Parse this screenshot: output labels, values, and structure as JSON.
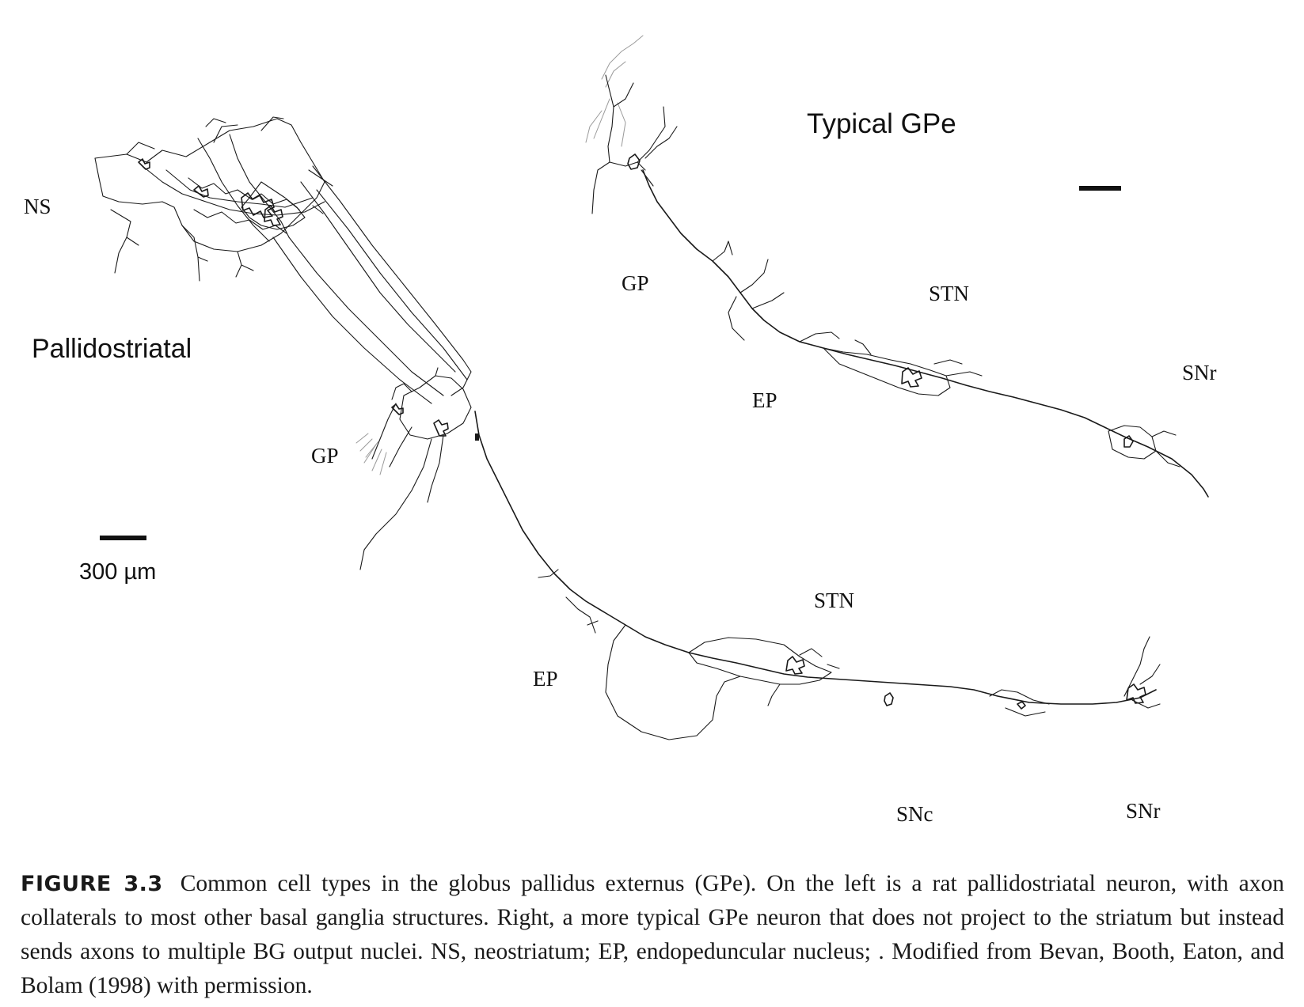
{
  "figure": {
    "left_panel": {
      "title": "Pallidostriatal",
      "regions": [
        "NS",
        "GP",
        "EP",
        "STN",
        "SNc",
        "SNr"
      ],
      "scale_bar_label": "300 µm"
    },
    "right_panel": {
      "title": "Typical GPe",
      "regions": [
        "GP",
        "EP",
        "STN",
        "SNr"
      ]
    }
  },
  "caption": {
    "figure_number": "FIGURE 3.3",
    "text": "Common cell types in the globus pallidus externus (GPe). On the left is a rat pallidostriatal neuron, with axon collaterals to most other basal ganglia structures. Right, a more typical GPe neuron that does not project to the striatum but instead sends axons to multiple BG output nuclei. NS, neostriatum; EP, endopeduncular nucleus; . Modified from Bevan, Booth, Eaton, and Bolam (1998) with permission."
  }
}
